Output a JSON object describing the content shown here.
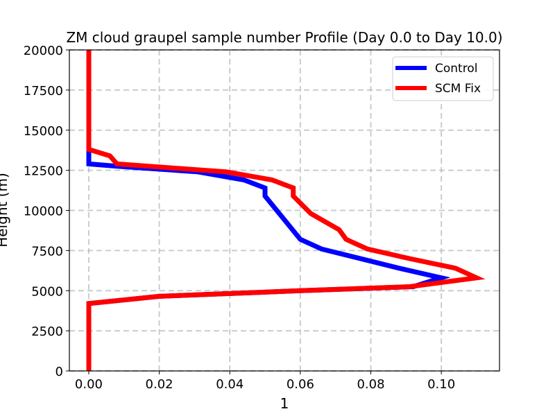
{
  "chart_data": {
    "type": "line",
    "title": "ZM cloud graupel sample number Profile (Day 0.0 to Day 10.0)",
    "xlabel": "1",
    "ylabel": "Height (m)",
    "xlim": [
      -0.0055,
      0.1165
    ],
    "ylim": [
      0,
      20000
    ],
    "xticks": [
      "0.00",
      "0.02",
      "0.04",
      "0.06",
      "0.08",
      "0.10"
    ],
    "xtick_values": [
      0.0,
      0.02,
      0.04,
      0.06,
      0.08,
      0.1
    ],
    "yticks": [
      "0",
      "2500",
      "5000",
      "7500",
      "10000",
      "12500",
      "15000",
      "17500",
      "20000"
    ],
    "ytick_values": [
      0,
      2500,
      5000,
      7500,
      10000,
      12500,
      15000,
      17500,
      20000
    ],
    "grid": true,
    "legend_position": "upper right",
    "series": [
      {
        "name": "Control",
        "color": "#0000ff",
        "points": [
          [
            0.0,
            0
          ],
          [
            0.0,
            4200
          ],
          [
            0.02,
            4650
          ],
          [
            0.06,
            5000
          ],
          [
            0.092,
            5250
          ],
          [
            0.1,
            5800
          ],
          [
            0.088,
            6400
          ],
          [
            0.066,
            7600
          ],
          [
            0.06,
            8200
          ],
          [
            0.05,
            10900
          ],
          [
            0.05,
            11400
          ],
          [
            0.044,
            11900
          ],
          [
            0.031,
            12400
          ],
          [
            0.008,
            12750
          ],
          [
            0.0,
            12900
          ],
          [
            0.0,
            13700
          ]
        ]
      },
      {
        "name": "SCM Fix",
        "color": "#ff0000",
        "points": [
          [
            0.0,
            0
          ],
          [
            0.0,
            4200
          ],
          [
            0.02,
            4650
          ],
          [
            0.06,
            5000
          ],
          [
            0.091,
            5250
          ],
          [
            0.11,
            5800
          ],
          [
            0.104,
            6400
          ],
          [
            0.091,
            7000
          ],
          [
            0.079,
            7600
          ],
          [
            0.073,
            8200
          ],
          [
            0.071,
            8800
          ],
          [
            0.063,
            9800
          ],
          [
            0.058,
            10900
          ],
          [
            0.058,
            11400
          ],
          [
            0.052,
            11900
          ],
          [
            0.039,
            12400
          ],
          [
            0.008,
            12900
          ],
          [
            0.006,
            13400
          ],
          [
            0.0,
            13800
          ],
          [
            0.0,
            20000
          ]
        ]
      }
    ]
  }
}
